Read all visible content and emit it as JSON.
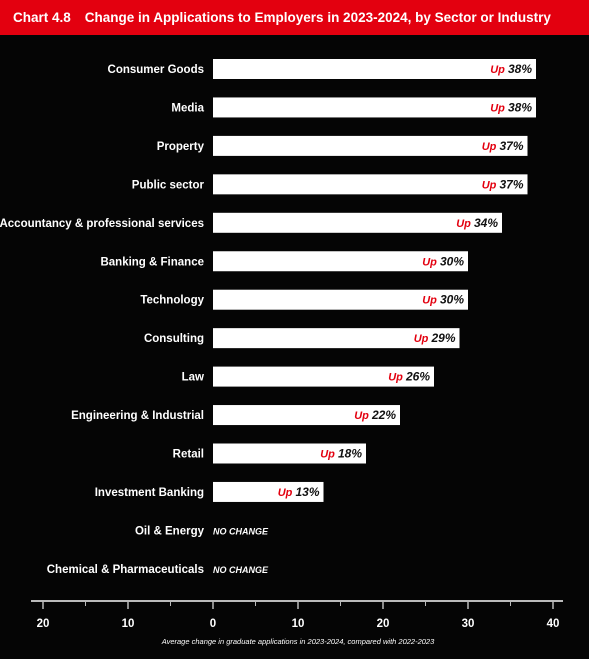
{
  "header": {
    "chart_number": "Chart 4.8",
    "title": "Change in Applications to Employers in 2023-2024, by Sector or Industry"
  },
  "colors": {
    "header_bg": "#e3000f",
    "background": "#050505",
    "bar_fill": "#ffffff",
    "up_text": "#e3000f",
    "value_text": "#111111",
    "axis": "#bbbbbb"
  },
  "chart_data": {
    "type": "bar",
    "orientation": "horizontal",
    "categories": [
      "Consumer Goods",
      "Media",
      "Property",
      "Public sector",
      "Accountancy & professional services",
      "Banking & Finance",
      "Technology",
      "Consulting",
      "Law",
      "Engineering & Industrial",
      "Retail",
      "Investment Banking",
      "Oil & Energy",
      "Chemical & Pharmaceuticals"
    ],
    "values": [
      38,
      38,
      37,
      37,
      34,
      30,
      30,
      29,
      26,
      22,
      18,
      13,
      0,
      0
    ],
    "labels": [
      {
        "prefix": "Up",
        "value": "38%"
      },
      {
        "prefix": "Up",
        "value": "38%"
      },
      {
        "prefix": "Up",
        "value": "37%"
      },
      {
        "prefix": "Up",
        "value": "37%"
      },
      {
        "prefix": "Up",
        "value": "34%"
      },
      {
        "prefix": "Up",
        "value": "30%"
      },
      {
        "prefix": "Up",
        "value": "30%"
      },
      {
        "prefix": "Up",
        "value": "29%"
      },
      {
        "prefix": "Up",
        "value": "26%"
      },
      {
        "prefix": "Up",
        "value": "22%"
      },
      {
        "prefix": "Up",
        "value": "18%"
      },
      {
        "prefix": "Up",
        "value": "13%"
      },
      {
        "prefix": "",
        "value": "NO CHANGE"
      },
      {
        "prefix": "",
        "value": "NO CHANGE"
      }
    ],
    "xlim": [
      -20,
      40
    ],
    "xticks": [
      -20,
      -10,
      0,
      10,
      20,
      30,
      40
    ],
    "xtick_labels": [
      "20",
      "10",
      "0",
      "10",
      "20",
      "30",
      "40"
    ],
    "xlabel": "Average change in graduate applications in 2023-2024, compared with 2022-2023",
    "grid": false
  }
}
